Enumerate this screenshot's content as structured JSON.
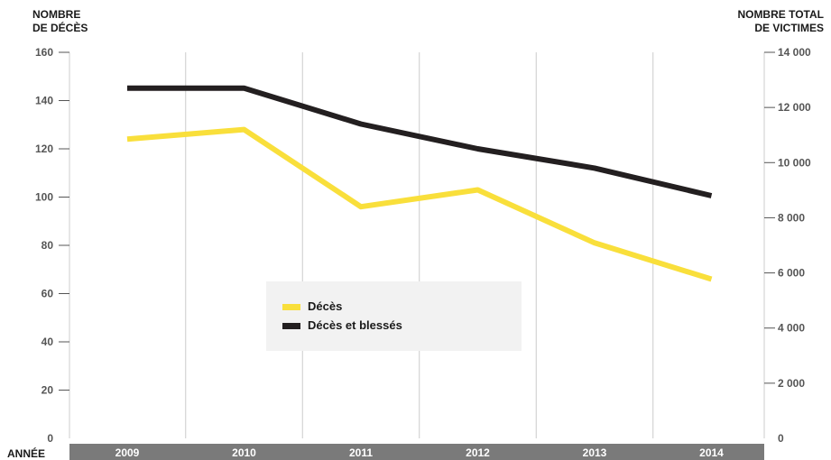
{
  "chart_data": {
    "type": "line",
    "y_title_left": [
      "NOMBRE",
      "DE DÉCÈS"
    ],
    "y_title_right": [
      "NOMBRE TOTAL",
      "DE VICTIMES"
    ],
    "x_axis_label": "ANNÉE",
    "categories": [
      "2009",
      "2010",
      "2011",
      "2012",
      "2013",
      "2014"
    ],
    "y_left": {
      "ylim": [
        0,
        160
      ],
      "ticks": [
        0,
        20,
        40,
        60,
        80,
        100,
        120,
        140,
        160
      ],
      "tick_labels": [
        "0",
        "20",
        "40",
        "60",
        "80",
        "100",
        "120",
        "140",
        "160"
      ]
    },
    "y_right": {
      "ylim": [
        0,
        14000
      ],
      "ticks": [
        0,
        2000,
        4000,
        6000,
        8000,
        10000,
        12000,
        14000
      ],
      "tick_labels": [
        "0",
        "2 000",
        "4 000",
        "6 000",
        "8 000",
        "10 000",
        "12 000",
        "14 000"
      ]
    },
    "series": [
      {
        "name": "Décès",
        "axis": "left",
        "color": "#f9df3b",
        "values": [
          124,
          128,
          96,
          103,
          81,
          66
        ]
      },
      {
        "name": "Décès et blessés",
        "axis": "right",
        "color": "#231f20",
        "values": [
          12700,
          12700,
          11400,
          10500,
          9800,
          8800
        ]
      }
    ],
    "legend_position": "center",
    "grid": "vertical",
    "colors": {
      "axis_bar": "#7a7a7a",
      "tick_label": "#555555",
      "grid": "#cccccc",
      "legend_bg": "#f2f2f2"
    }
  }
}
